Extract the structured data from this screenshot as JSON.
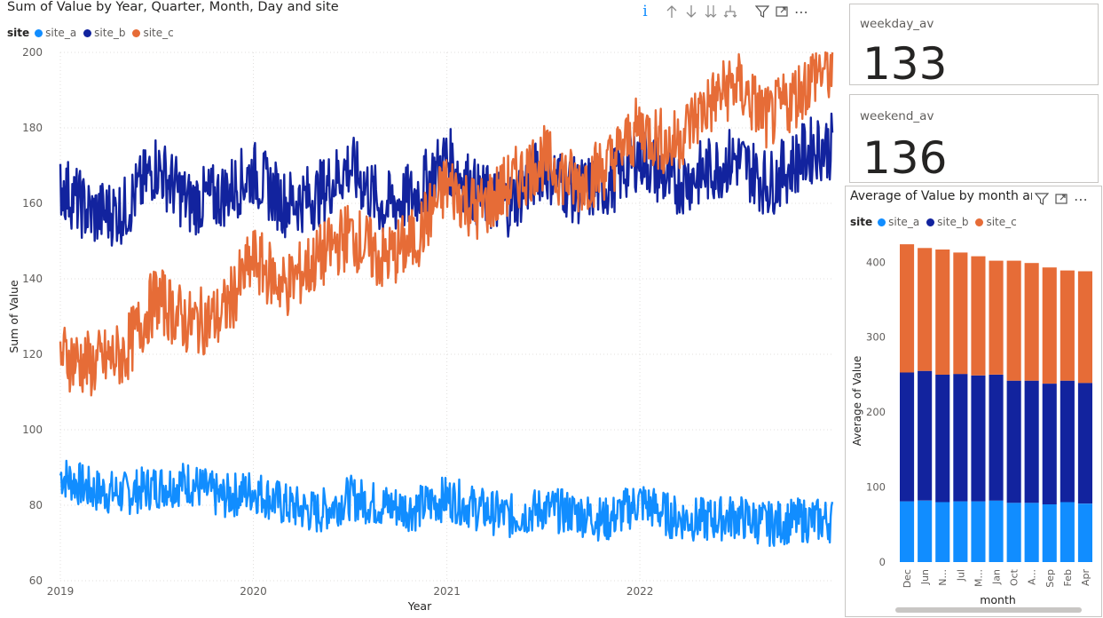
{
  "line_visual": {
    "title": "Sum of Value by Year, Quarter, Month, Day and site",
    "legend_title": "site",
    "header_icons": [
      "info-icon",
      "arrow-up-icon",
      "arrow-down-icon",
      "double-arrow-down-icon",
      "expand-hierarchy-icon",
      "filter-icon",
      "focus-mode-icon",
      "more-options-icon"
    ]
  },
  "cards": [
    {
      "label": "weekday_av",
      "value": "133"
    },
    {
      "label": "weekend_av",
      "value": "136"
    }
  ],
  "bar_visual": {
    "title": "Average of Value by month and site",
    "legend_title": "site",
    "header_icons": [
      "filter-icon",
      "focus-mode-icon",
      "more-options-icon"
    ]
  },
  "colors": {
    "site_a": "#118DFF",
    "site_b": "#12239E",
    "site_c": "#E66C37"
  },
  "chart_data": [
    {
      "type": "line",
      "title": "Sum of Value by Year, Quarter, Month, Day and site",
      "xlabel": "Year",
      "ylabel": "Sum of Value",
      "ylim": [
        60,
        200
      ],
      "yticks": [
        "60",
        "80",
        "100",
        "120",
        "140",
        "160",
        "180",
        "200"
      ],
      "xticks": [
        "2019",
        "2020",
        "2021",
        "2022"
      ],
      "xlim": [
        "2019-01-01",
        "2022-12-31"
      ],
      "grid": true,
      "legend": "top-left",
      "series": [
        {
          "name": "site_a",
          "color": "#118DFF",
          "x": [
            "2019-01",
            "2019-03",
            "2019-05",
            "2019-07",
            "2019-09",
            "2019-11",
            "2020-01",
            "2020-03",
            "2020-05",
            "2020-07",
            "2020-09",
            "2020-11",
            "2021-01",
            "2021-03",
            "2021-05",
            "2021-07",
            "2021-09",
            "2021-11",
            "2022-01",
            "2022-03",
            "2022-05",
            "2022-07",
            "2022-09",
            "2022-11",
            "2022-12"
          ],
          "values": [
            88,
            84,
            83,
            85,
            86,
            82,
            84,
            80,
            78,
            82,
            80,
            79,
            82,
            79,
            77,
            79,
            78,
            76,
            81,
            77,
            76,
            77,
            75,
            76,
            76
          ]
        },
        {
          "name": "site_b",
          "color": "#12239E",
          "x": [
            "2019-01",
            "2019-03",
            "2019-05",
            "2019-07",
            "2019-09",
            "2019-11",
            "2020-01",
            "2020-03",
            "2020-05",
            "2020-07",
            "2020-09",
            "2020-11",
            "2021-01",
            "2021-03",
            "2021-05",
            "2021-07",
            "2021-09",
            "2021-11",
            "2022-01",
            "2022-03",
            "2022-05",
            "2022-07",
            "2022-09",
            "2022-11",
            "2022-12"
          ],
          "values": [
            165,
            157,
            158,
            170,
            160,
            162,
            168,
            160,
            162,
            170,
            159,
            162,
            172,
            162,
            160,
            170,
            163,
            165,
            173,
            165,
            168,
            172,
            165,
            172,
            175
          ]
        },
        {
          "name": "site_c",
          "color": "#E66C37",
          "x": [
            "2019-01",
            "2019-03",
            "2019-05",
            "2019-07",
            "2019-09",
            "2019-11",
            "2020-01",
            "2020-03",
            "2020-05",
            "2020-07",
            "2020-09",
            "2020-11",
            "2021-01",
            "2021-03",
            "2021-05",
            "2021-07",
            "2021-09",
            "2021-11",
            "2022-01",
            "2022-03",
            "2022-05",
            "2022-07",
            "2022-09",
            "2022-11",
            "2022-12"
          ],
          "values": [
            120,
            117,
            120,
            135,
            128,
            130,
            145,
            138,
            145,
            152,
            145,
            150,
            165,
            158,
            165,
            172,
            165,
            170,
            180,
            175,
            185,
            192,
            182,
            190,
            195
          ]
        }
      ]
    },
    {
      "type": "bar",
      "stacked": true,
      "title": "Average of Value by month and site",
      "xlabel": "month",
      "ylabel": "Average of Value",
      "ylim": [
        0,
        430
      ],
      "yticks": [
        "0",
        "100",
        "200",
        "300",
        "400"
      ],
      "categories": [
        "Dec",
        "Jun",
        "N...",
        "Jul",
        "M...",
        "Jan",
        "Oct",
        "A...",
        "Sep",
        "Feb",
        "Apr"
      ],
      "legend": "top-left",
      "series": [
        {
          "name": "site_a",
          "color": "#118DFF",
          "values": [
            81,
            82,
            80,
            81,
            81,
            82,
            79,
            79,
            77,
            80,
            78
          ]
        },
        {
          "name": "site_b",
          "color": "#12239E",
          "values": [
            172,
            173,
            170,
            170,
            168,
            168,
            163,
            163,
            161,
            162,
            161
          ]
        },
        {
          "name": "site_c",
          "color": "#E66C37",
          "values": [
            171,
            164,
            167,
            162,
            159,
            152,
            160,
            157,
            155,
            147,
            149
          ]
        }
      ]
    }
  ]
}
